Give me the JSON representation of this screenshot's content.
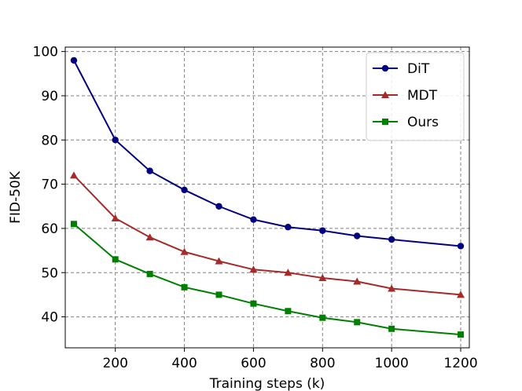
{
  "chart_data": {
    "type": "line",
    "title": "",
    "xlabel": "Training steps (k)",
    "ylabel": "FID-50K",
    "xlim": [
      55,
      1225
    ],
    "ylim": [
      33,
      101
    ],
    "xticks": [
      200,
      400,
      600,
      800,
      1000,
      1200
    ],
    "yticks": [
      40,
      50,
      60,
      70,
      80,
      90,
      100
    ],
    "grid": true,
    "legend_position": "top-right",
    "x": [
      80,
      200,
      300,
      400,
      500,
      600,
      700,
      800,
      900,
      1000,
      1200
    ],
    "series": [
      {
        "name": "DiT",
        "color": "#000080",
        "marker": "circle",
        "values": [
          98,
          80,
          73,
          68.7,
          65,
          62,
          60.3,
          59.5,
          58.3,
          57.5,
          56
        ]
      },
      {
        "name": "MDT",
        "color": "#a52a2a",
        "marker": "triangle",
        "values": [
          72,
          62.3,
          58,
          54.7,
          52.6,
          50.7,
          50,
          48.8,
          48,
          46.4,
          45
        ]
      },
      {
        "name": "Ours",
        "color": "#008000",
        "marker": "square",
        "values": [
          61,
          53,
          49.7,
          46.7,
          45,
          43,
          41.3,
          39.8,
          38.8,
          37.3,
          36
        ]
      }
    ]
  }
}
